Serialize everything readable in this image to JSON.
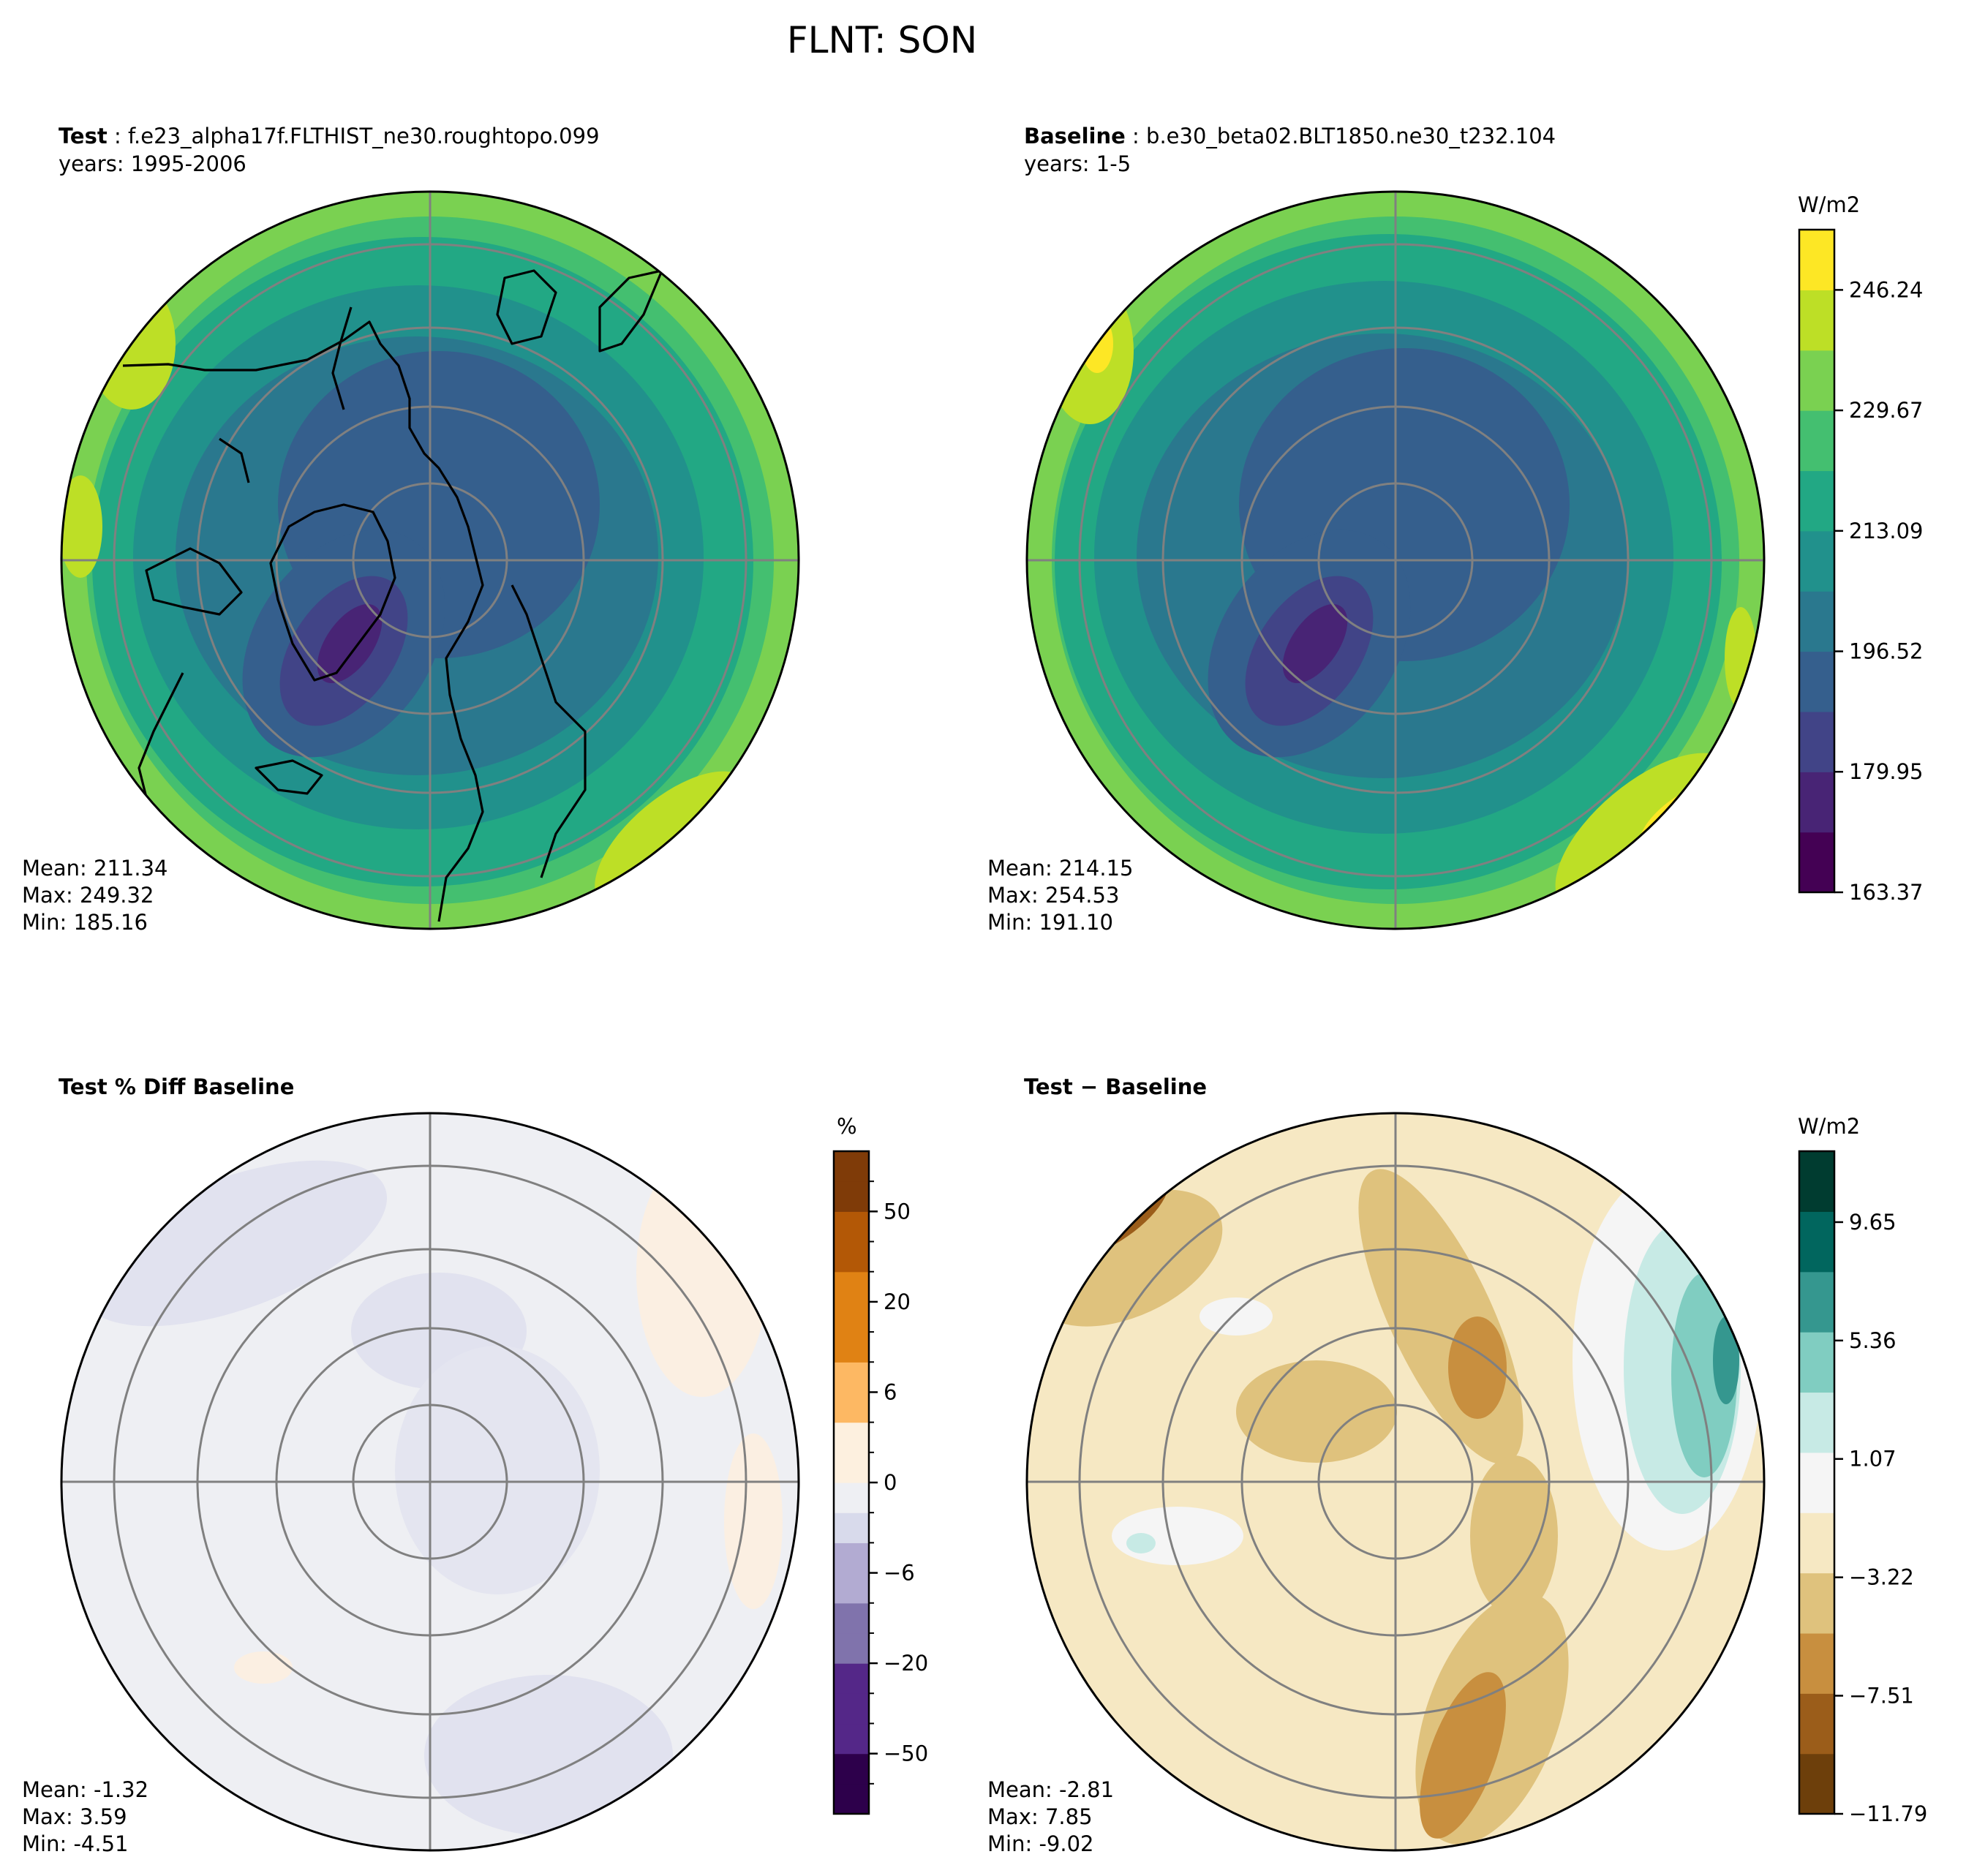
{
  "figure_title": "FLNT: SON",
  "colors": {
    "land_outline": "#000000",
    "grid": "#808080",
    "viridis": [
      "#440154",
      "#482475",
      "#414487",
      "#355f8d",
      "#2a788e",
      "#21918c",
      "#22a884",
      "#44bf70",
      "#7ad151",
      "#bddf26",
      "#fde725"
    ],
    "purple_orange": [
      "#2d004b",
      "#542788",
      "#8073ac",
      "#b2abd2",
      "#d8daeb",
      "#eeeff3",
      "#fdf0df",
      "#fdb863",
      "#e08214",
      "#b35806",
      "#7f3b08"
    ],
    "brown_green": [
      "#6d3f0b",
      "#9b5d1a",
      "#c88f3f",
      "#dfc27d",
      "#f6e8c3",
      "#f5f5f5",
      "#c7eae5",
      "#80cdc1",
      "#35978f",
      "#01665e",
      "#003c30"
    ]
  },
  "panels": {
    "test": {
      "label_bold": "Test",
      "case": "f.e23_alpha17f.FLTHIST_ne30.roughtopo.099",
      "years": "years: 1995-2006",
      "stats": {
        "mean": "Mean: 211.34",
        "max": "Max: 249.32",
        "min": "Min: 185.16"
      }
    },
    "baseline": {
      "label_bold": "Baseline",
      "case": "b.e30_beta02.BLT1850.ne30_t232.104",
      "years": "years: 1-5",
      "stats": {
        "mean": "Mean: 214.15",
        "max": "Max: 254.53",
        "min": "Min: 191.10"
      }
    },
    "pct_diff": {
      "label_bold": "Test % Diff Baseline",
      "stats": {
        "mean": "Mean: -1.32",
        "max": "Max:  3.59",
        "min": "Min: -4.51"
      }
    },
    "diff": {
      "label_bold": "Test − Baseline",
      "stats": {
        "mean": "Mean: -2.81",
        "max": "Max:  7.85",
        "min": "Min: -9.02"
      }
    }
  },
  "colorbars": {
    "main": {
      "unit": "W/m2",
      "ticks": [
        "246.24",
        "229.67",
        "213.09",
        "196.52",
        "179.95",
        "163.37"
      ]
    },
    "pct": {
      "unit": "%",
      "ticks": [
        "50",
        "20",
        "6",
        "0",
        "−6",
        "−20",
        "−50"
      ]
    },
    "diff": {
      "unit": "W/m2",
      "ticks": [
        "9.65",
        "5.36",
        "1.07",
        "−3.22",
        "−7.51",
        "−11.79"
      ]
    }
  },
  "chart_data": [
    {
      "type": "heatmap",
      "title": "Test : f.e23_alpha17f.FLTHIST_ne30.roughtopo.099",
      "projection": "north polar stereographic",
      "variable": "FLNT",
      "season": "SON",
      "units": "W/m2",
      "color_levels": [
        163.37,
        179.95,
        196.52,
        213.09,
        229.67,
        246.24
      ],
      "stats": {
        "mean": 211.34,
        "max": 249.32,
        "min": 185.16
      }
    },
    {
      "type": "heatmap",
      "title": "Baseline : b.e30_beta02.BLT1850.ne30_t232.104",
      "projection": "north polar stereographic",
      "variable": "FLNT",
      "season": "SON",
      "units": "W/m2",
      "color_levels": [
        163.37,
        179.95,
        196.52,
        213.09,
        229.67,
        246.24
      ],
      "stats": {
        "mean": 214.15,
        "max": 254.53,
        "min": 191.1
      }
    },
    {
      "type": "heatmap",
      "title": "Test % Diff Baseline",
      "projection": "north polar stereographic",
      "units": "%",
      "color_levels": [
        -50,
        -20,
        -6,
        0,
        6,
        20,
        50
      ],
      "stats": {
        "mean": -1.32,
        "max": 3.59,
        "min": -4.51
      }
    },
    {
      "type": "heatmap",
      "title": "Test − Baseline",
      "projection": "north polar stereographic",
      "units": "W/m2",
      "color_levels": [
        -11.79,
        -7.51,
        -3.22,
        1.07,
        5.36,
        9.65
      ],
      "stats": {
        "mean": -2.81,
        "max": 7.85,
        "min": -9.02
      }
    }
  ]
}
